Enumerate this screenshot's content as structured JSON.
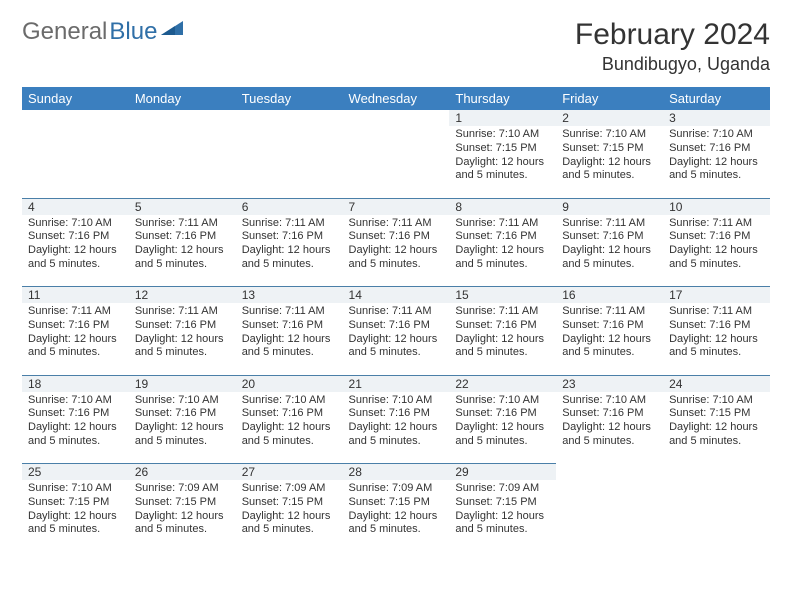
{
  "logo": {
    "part1": "General",
    "part2": "Blue"
  },
  "title": "February 2024",
  "location": "Bundibugyo, Uganda",
  "colors": {
    "header_bg": "#3b7fbf",
    "header_text": "#ffffff",
    "daynum_bg": "#eef2f5",
    "border": "#4a7fa8",
    "logo_gray": "#6b6b6b",
    "logo_blue": "#2f6fa7"
  },
  "weekdays": [
    "Sunday",
    "Monday",
    "Tuesday",
    "Wednesday",
    "Thursday",
    "Friday",
    "Saturday"
  ],
  "weeks": [
    [
      null,
      null,
      null,
      null,
      {
        "n": "1",
        "sr": "Sunrise: 7:10 AM",
        "ss": "Sunset: 7:15 PM",
        "dl": "Daylight: 12 hours and 5 minutes."
      },
      {
        "n": "2",
        "sr": "Sunrise: 7:10 AM",
        "ss": "Sunset: 7:15 PM",
        "dl": "Daylight: 12 hours and 5 minutes."
      },
      {
        "n": "3",
        "sr": "Sunrise: 7:10 AM",
        "ss": "Sunset: 7:16 PM",
        "dl": "Daylight: 12 hours and 5 minutes."
      }
    ],
    [
      {
        "n": "4",
        "sr": "Sunrise: 7:10 AM",
        "ss": "Sunset: 7:16 PM",
        "dl": "Daylight: 12 hours and 5 minutes."
      },
      {
        "n": "5",
        "sr": "Sunrise: 7:11 AM",
        "ss": "Sunset: 7:16 PM",
        "dl": "Daylight: 12 hours and 5 minutes."
      },
      {
        "n": "6",
        "sr": "Sunrise: 7:11 AM",
        "ss": "Sunset: 7:16 PM",
        "dl": "Daylight: 12 hours and 5 minutes."
      },
      {
        "n": "7",
        "sr": "Sunrise: 7:11 AM",
        "ss": "Sunset: 7:16 PM",
        "dl": "Daylight: 12 hours and 5 minutes."
      },
      {
        "n": "8",
        "sr": "Sunrise: 7:11 AM",
        "ss": "Sunset: 7:16 PM",
        "dl": "Daylight: 12 hours and 5 minutes."
      },
      {
        "n": "9",
        "sr": "Sunrise: 7:11 AM",
        "ss": "Sunset: 7:16 PM",
        "dl": "Daylight: 12 hours and 5 minutes."
      },
      {
        "n": "10",
        "sr": "Sunrise: 7:11 AM",
        "ss": "Sunset: 7:16 PM",
        "dl": "Daylight: 12 hours and 5 minutes."
      }
    ],
    [
      {
        "n": "11",
        "sr": "Sunrise: 7:11 AM",
        "ss": "Sunset: 7:16 PM",
        "dl": "Daylight: 12 hours and 5 minutes."
      },
      {
        "n": "12",
        "sr": "Sunrise: 7:11 AM",
        "ss": "Sunset: 7:16 PM",
        "dl": "Daylight: 12 hours and 5 minutes."
      },
      {
        "n": "13",
        "sr": "Sunrise: 7:11 AM",
        "ss": "Sunset: 7:16 PM",
        "dl": "Daylight: 12 hours and 5 minutes."
      },
      {
        "n": "14",
        "sr": "Sunrise: 7:11 AM",
        "ss": "Sunset: 7:16 PM",
        "dl": "Daylight: 12 hours and 5 minutes."
      },
      {
        "n": "15",
        "sr": "Sunrise: 7:11 AM",
        "ss": "Sunset: 7:16 PM",
        "dl": "Daylight: 12 hours and 5 minutes."
      },
      {
        "n": "16",
        "sr": "Sunrise: 7:11 AM",
        "ss": "Sunset: 7:16 PM",
        "dl": "Daylight: 12 hours and 5 minutes."
      },
      {
        "n": "17",
        "sr": "Sunrise: 7:11 AM",
        "ss": "Sunset: 7:16 PM",
        "dl": "Daylight: 12 hours and 5 minutes."
      }
    ],
    [
      {
        "n": "18",
        "sr": "Sunrise: 7:10 AM",
        "ss": "Sunset: 7:16 PM",
        "dl": "Daylight: 12 hours and 5 minutes."
      },
      {
        "n": "19",
        "sr": "Sunrise: 7:10 AM",
        "ss": "Sunset: 7:16 PM",
        "dl": "Daylight: 12 hours and 5 minutes."
      },
      {
        "n": "20",
        "sr": "Sunrise: 7:10 AM",
        "ss": "Sunset: 7:16 PM",
        "dl": "Daylight: 12 hours and 5 minutes."
      },
      {
        "n": "21",
        "sr": "Sunrise: 7:10 AM",
        "ss": "Sunset: 7:16 PM",
        "dl": "Daylight: 12 hours and 5 minutes."
      },
      {
        "n": "22",
        "sr": "Sunrise: 7:10 AM",
        "ss": "Sunset: 7:16 PM",
        "dl": "Daylight: 12 hours and 5 minutes."
      },
      {
        "n": "23",
        "sr": "Sunrise: 7:10 AM",
        "ss": "Sunset: 7:16 PM",
        "dl": "Daylight: 12 hours and 5 minutes."
      },
      {
        "n": "24",
        "sr": "Sunrise: 7:10 AM",
        "ss": "Sunset: 7:15 PM",
        "dl": "Daylight: 12 hours and 5 minutes."
      }
    ],
    [
      {
        "n": "25",
        "sr": "Sunrise: 7:10 AM",
        "ss": "Sunset: 7:15 PM",
        "dl": "Daylight: 12 hours and 5 minutes."
      },
      {
        "n": "26",
        "sr": "Sunrise: 7:09 AM",
        "ss": "Sunset: 7:15 PM",
        "dl": "Daylight: 12 hours and 5 minutes."
      },
      {
        "n": "27",
        "sr": "Sunrise: 7:09 AM",
        "ss": "Sunset: 7:15 PM",
        "dl": "Daylight: 12 hours and 5 minutes."
      },
      {
        "n": "28",
        "sr": "Sunrise: 7:09 AM",
        "ss": "Sunset: 7:15 PM",
        "dl": "Daylight: 12 hours and 5 minutes."
      },
      {
        "n": "29",
        "sr": "Sunrise: 7:09 AM",
        "ss": "Sunset: 7:15 PM",
        "dl": "Daylight: 12 hours and 5 minutes."
      },
      null,
      null
    ]
  ]
}
